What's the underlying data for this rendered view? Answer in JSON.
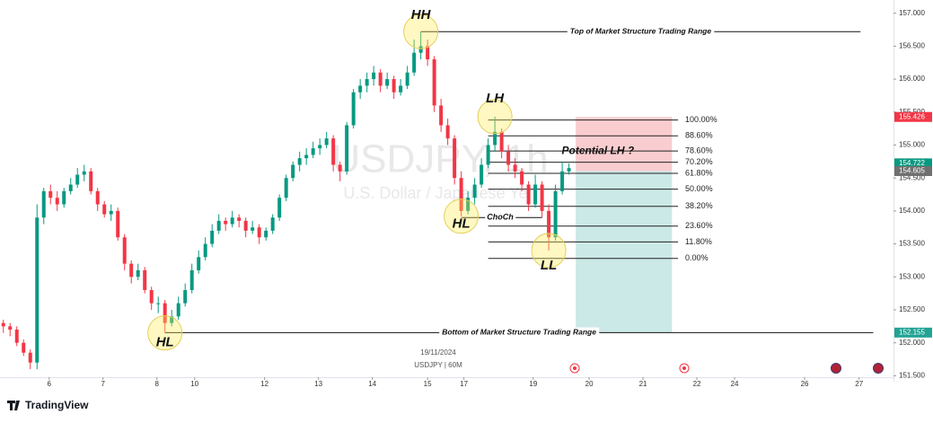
{
  "chart_data": {
    "type": "candlestick",
    "symbol_watermark": "USDJPY, 1h",
    "description_watermark": "U.S. Dollar / Japanese Yen",
    "date_label": "19/11/2024",
    "symbol_label": "USDJPY | 60M",
    "brand": "TradingView",
    "up_color": "#089981",
    "down_color": "#f23645",
    "xlim": [
      -0.5,
      132.2
    ],
    "xticks": [
      {
        "value": 6.8,
        "label": "6"
      },
      {
        "value": 14.8,
        "label": "7"
      },
      {
        "value": 22.8,
        "label": "8"
      },
      {
        "value": 28.4,
        "label": "10"
      },
      {
        "value": 38.8,
        "label": "12"
      },
      {
        "value": 46.8,
        "label": "13"
      },
      {
        "value": 54.8,
        "label": "14"
      },
      {
        "value": 63,
        "label": "15"
      },
      {
        "value": 68.4,
        "label": "17"
      },
      {
        "value": 78.7,
        "label": "19"
      },
      {
        "value": 87,
        "label": "20"
      },
      {
        "value": 95,
        "label": "21"
      },
      {
        "value": 103,
        "label": "22"
      },
      {
        "value": 108.6,
        "label": "24"
      },
      {
        "value": 119,
        "label": "26"
      },
      {
        "value": 127.1,
        "label": "27"
      }
    ],
    "ylim": [
      151.41,
      157.2
    ],
    "yticks": [
      {
        "value": 151.5,
        "label": "151.500"
      },
      {
        "value": 152,
        "label": "152.000"
      },
      {
        "value": 152.5,
        "label": "152.500"
      },
      {
        "value": 153,
        "label": "153.000"
      },
      {
        "value": 153.5,
        "label": "153.500"
      },
      {
        "value": 154,
        "label": "154.000"
      },
      {
        "value": 154.5,
        "label": "154.500"
      },
      {
        "value": 155,
        "label": "155.000"
      },
      {
        "value": 155.5,
        "label": "155.500"
      },
      {
        "value": 156,
        "label": "156.000"
      },
      {
        "value": 156.5,
        "label": "156.500"
      },
      {
        "value": 157,
        "label": "157.000"
      }
    ],
    "ohlc": [
      [
        152.3,
        152.35,
        152.15,
        152.25
      ],
      [
        152.25,
        152.3,
        152.1,
        152.2
      ],
      [
        152.2,
        152.25,
        151.95,
        152.0
      ],
      [
        152.0,
        152.05,
        151.8,
        151.85
      ],
      [
        151.85,
        151.9,
        151.6,
        151.7
      ],
      [
        151.7,
        154.1,
        151.6,
        153.9
      ],
      [
        153.9,
        154.35,
        153.8,
        154.3
      ],
      [
        154.3,
        154.4,
        154.1,
        154.2
      ],
      [
        154.2,
        154.3,
        154.0,
        154.1
      ],
      [
        154.1,
        154.35,
        154.05,
        154.3
      ],
      [
        154.3,
        154.5,
        154.25,
        154.4
      ],
      [
        154.4,
        154.65,
        154.35,
        154.55
      ],
      [
        154.55,
        154.7,
        154.45,
        154.6
      ],
      [
        154.6,
        154.65,
        154.25,
        154.3
      ],
      [
        154.3,
        154.35,
        154.0,
        154.1
      ],
      [
        154.1,
        154.15,
        153.9,
        153.95
      ],
      [
        153.95,
        154.1,
        153.85,
        154.0
      ],
      [
        154.0,
        154.05,
        153.55,
        153.6
      ],
      [
        153.6,
        153.65,
        153.1,
        153.2
      ],
      [
        153.2,
        153.25,
        152.9,
        153.0
      ],
      [
        153.0,
        153.2,
        152.95,
        153.1
      ],
      [
        153.1,
        153.15,
        152.75,
        152.8
      ],
      [
        152.8,
        152.85,
        152.5,
        152.6
      ],
      [
        152.6,
        152.7,
        152.45,
        152.6
      ],
      [
        152.6,
        152.65,
        152.15,
        152.3
      ],
      [
        152.3,
        152.5,
        152.25,
        152.4
      ],
      [
        152.4,
        152.7,
        152.35,
        152.6
      ],
      [
        152.6,
        152.9,
        152.55,
        152.8
      ],
      [
        152.8,
        153.2,
        152.75,
        153.1
      ],
      [
        153.1,
        153.4,
        153.05,
        153.3
      ],
      [
        153.3,
        153.6,
        153.25,
        153.5
      ],
      [
        153.5,
        153.8,
        153.45,
        153.7
      ],
      [
        153.7,
        153.95,
        153.65,
        153.85
      ],
      [
        153.85,
        153.9,
        153.7,
        153.8
      ],
      [
        153.8,
        154.0,
        153.75,
        153.9
      ],
      [
        153.9,
        153.95,
        153.75,
        153.85
      ],
      [
        153.85,
        153.9,
        153.6,
        153.7
      ],
      [
        153.7,
        153.85,
        153.65,
        153.75
      ],
      [
        153.75,
        153.8,
        153.5,
        153.6
      ],
      [
        153.6,
        153.75,
        153.55,
        153.7
      ],
      [
        153.7,
        153.95,
        153.65,
        153.9
      ],
      [
        153.9,
        154.25,
        153.85,
        154.2
      ],
      [
        154.2,
        154.55,
        154.15,
        154.5
      ],
      [
        154.5,
        154.75,
        154.45,
        154.7
      ],
      [
        154.7,
        154.9,
        154.6,
        154.8
      ],
      [
        154.8,
        154.95,
        154.7,
        154.85
      ],
      [
        154.85,
        155.05,
        154.8,
        154.95
      ],
      [
        154.95,
        155.1,
        154.85,
        155.0
      ],
      [
        155.0,
        155.2,
        154.95,
        155.1
      ],
      [
        155.1,
        155.15,
        154.6,
        154.7
      ],
      [
        154.7,
        154.75,
        154.45,
        154.6
      ],
      [
        154.6,
        155.35,
        154.55,
        155.3
      ],
      [
        155.3,
        155.85,
        155.25,
        155.8
      ],
      [
        155.8,
        156.0,
        155.7,
        155.9
      ],
      [
        155.9,
        156.1,
        155.8,
        156.0
      ],
      [
        156.0,
        156.2,
        155.9,
        156.1
      ],
      [
        156.1,
        156.15,
        155.8,
        155.9
      ],
      [
        155.9,
        156.1,
        155.85,
        156.0
      ],
      [
        156.0,
        156.05,
        155.7,
        155.8
      ],
      [
        155.8,
        156.0,
        155.75,
        155.9
      ],
      [
        155.9,
        156.2,
        155.85,
        156.1
      ],
      [
        156.1,
        156.6,
        156.05,
        156.4
      ],
      [
        156.4,
        156.72,
        156.3,
        156.5
      ],
      [
        156.5,
        156.6,
        156.2,
        156.3
      ],
      [
        156.3,
        156.35,
        155.5,
        155.6
      ],
      [
        155.6,
        155.7,
        155.2,
        155.3
      ],
      [
        155.3,
        155.4,
        155.0,
        155.1
      ],
      [
        155.1,
        155.15,
        154.4,
        154.5
      ],
      [
        154.5,
        154.6,
        153.92,
        154.0
      ],
      [
        154.0,
        154.3,
        153.95,
        154.2
      ],
      [
        154.2,
        154.5,
        154.1,
        154.4
      ],
      [
        154.4,
        154.8,
        154.35,
        154.7
      ],
      [
        154.7,
        155.1,
        154.65,
        155.0
      ],
      [
        155.0,
        155.43,
        154.9,
        155.2
      ],
      [
        155.2,
        155.25,
        154.8,
        154.9
      ],
      [
        154.9,
        155.0,
        154.6,
        154.7
      ],
      [
        154.7,
        154.8,
        154.5,
        154.6
      ],
      [
        154.6,
        154.65,
        154.3,
        154.4
      ],
      [
        154.4,
        154.45,
        154.0,
        154.1
      ],
      [
        154.1,
        154.55,
        154.05,
        154.4
      ],
      [
        154.4,
        154.45,
        153.9,
        154.0
      ],
      [
        154.0,
        154.1,
        153.4,
        153.6
      ],
      [
        153.6,
        154.4,
        153.55,
        154.3
      ],
      [
        154.3,
        154.75,
        154.25,
        154.6
      ],
      [
        154.6,
        154.72,
        154.55,
        154.65
      ]
    ],
    "swing_points": [
      {
        "label": "HH",
        "index": 62,
        "price": 156.72
      },
      {
        "label": "HL",
        "index": 24,
        "price": 152.15
      },
      {
        "label": "LH",
        "index": 73,
        "price": 155.43
      },
      {
        "label": "HL",
        "index": 68,
        "price": 153.92
      },
      {
        "label": "LL",
        "index": 81,
        "price": 153.4
      }
    ],
    "range_lines": [
      {
        "label": "Top of Market Structure Trading Range",
        "price": 156.72,
        "start": 62,
        "end": 127.3
      },
      {
        "label": "Bottom of Market Structure Trading Range",
        "price": 152.155,
        "start": 24,
        "end": 129.2
      }
    ],
    "choch": {
      "label": "ChoCh",
      "price": 153.9,
      "start": 68,
      "end": 80
    },
    "fib": {
      "start": 72,
      "end": 100.2,
      "levels": [
        {
          "label": "100.00%",
          "price": 155.38
        },
        {
          "label": "88.60%",
          "price": 155.14
        },
        {
          "label": "78.60%",
          "price": 154.91
        },
        {
          "label": "70.20%",
          "price": 154.74
        },
        {
          "label": "61.80%",
          "price": 154.57
        },
        {
          "label": "50.00%",
          "price": 154.33
        },
        {
          "label": "38.20%",
          "price": 154.07
        },
        {
          "label": "23.60%",
          "price": 153.77
        },
        {
          "label": "11.80%",
          "price": 153.53
        },
        {
          "label": "0.00%",
          "price": 153.28
        }
      ]
    },
    "position": {
      "start": 85,
      "end": 99.3,
      "stop": 155.426,
      "entry": 154.605,
      "target": 152.155,
      "loss_color": "#f9cdd0",
      "profit_color": "#cbe9e6"
    },
    "note": {
      "text": "Potential LH ?",
      "index": 88.3,
      "price": 154.91
    },
    "price_badges": [
      {
        "value": 155.426,
        "color": "#f23645"
      },
      {
        "value": 154.722,
        "color": "#089981"
      },
      {
        "value": 154.605,
        "color": "#707070"
      },
      {
        "value": 152.155,
        "color": "#22a394"
      }
    ]
  }
}
